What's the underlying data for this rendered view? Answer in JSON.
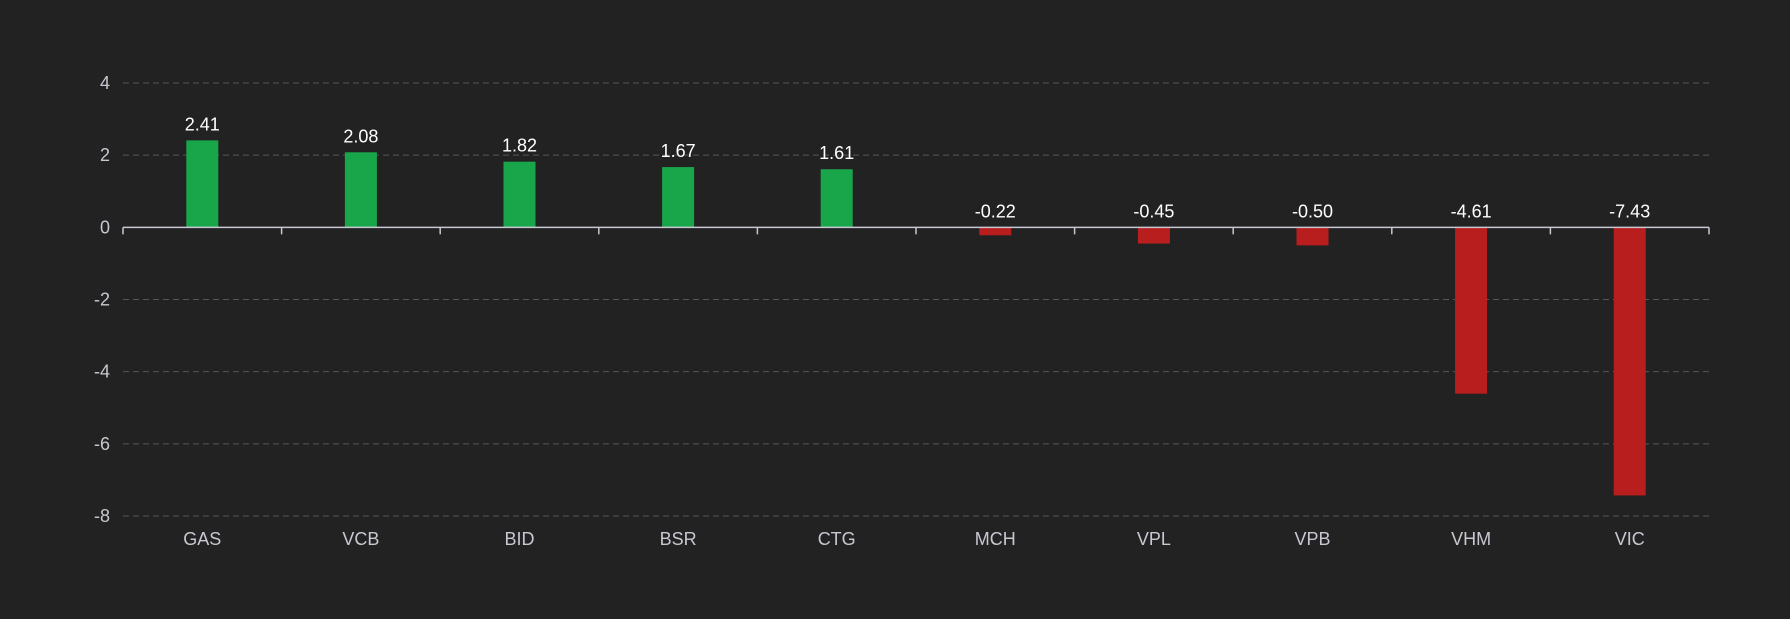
{
  "chart_data": {
    "type": "bar",
    "categories": [
      "GAS",
      "VCB",
      "BID",
      "BSR",
      "CTG",
      "MCH",
      "VPL",
      "VPB",
      "VHM",
      "VIC"
    ],
    "values": [
      2.41,
      2.08,
      1.82,
      1.67,
      1.61,
      -0.22,
      -0.45,
      -0.5,
      -4.61,
      -7.43
    ],
    "data_labels": [
      "2.41",
      "2.08",
      "1.82",
      "1.67",
      "1.61",
      "-0.22",
      "-0.45",
      "-0.50",
      "-4.61",
      "-7.43"
    ],
    "yticks": [
      4,
      2,
      0,
      -2,
      -4,
      -6,
      -8
    ],
    "ylim": [
      -8,
      4
    ],
    "grid": true,
    "colors": {
      "positive": "#19a64b",
      "negative": "#b91e1e",
      "background": "#222222"
    },
    "title": "",
    "xlabel": "",
    "ylabel": ""
  }
}
